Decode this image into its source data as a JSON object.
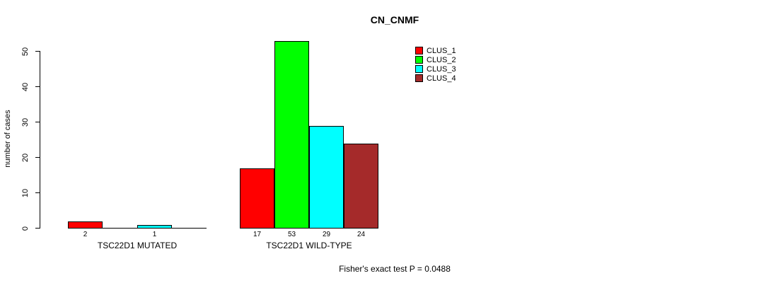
{
  "title": "CN_CNMF",
  "chart_data": {
    "type": "bar",
    "title": "CN_CNMF",
    "xlabel": "",
    "ylabel": "number of cases",
    "ylim": [
      0,
      50
    ],
    "yticks": [
      0,
      10,
      20,
      30,
      40,
      50
    ],
    "grid": false,
    "bar_border_color": "#000000",
    "background_color": "#ffffff",
    "series": [
      {
        "name": "CLUS_1",
        "color": "#ff0000"
      },
      {
        "name": "CLUS_2",
        "color": "#00ff00"
      },
      {
        "name": "CLUS_3",
        "color": "#00ffff"
      },
      {
        "name": "CLUS_4",
        "color": "#a52a2a"
      }
    ],
    "categories": [
      "TSC22D1 MUTATED",
      "TSC22D1 WILD-TYPE"
    ],
    "groups": [
      {
        "label": "TSC22D1 MUTATED",
        "values": [
          2,
          0,
          1,
          0
        ],
        "count_labels": [
          "2",
          "",
          "1",
          ""
        ]
      },
      {
        "label": "TSC22D1 WILD-TYPE",
        "values": [
          17,
          53,
          29,
          24
        ],
        "count_labels": [
          "17",
          "53",
          "29",
          "24"
        ]
      }
    ],
    "legend": {
      "position": "inside-top-right"
    }
  },
  "footer": {
    "stat_text": "Fisher's exact test P = 0.0488"
  }
}
